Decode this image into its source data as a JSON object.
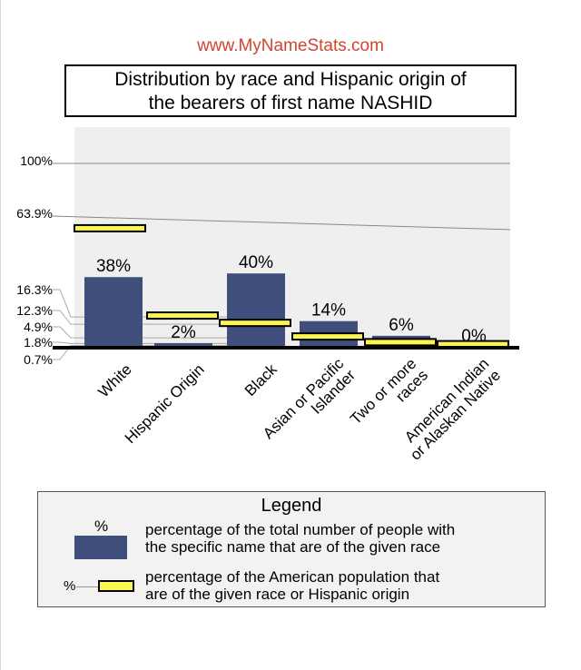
{
  "site": "www.MyNameStats.com",
  "title_lines": [
    "Distribution by race and Hispanic origin of",
    "the bearers of first name NASHID"
  ],
  "colors": {
    "bar": "#3f4e7a",
    "marker": "#fbf64f",
    "site": "#d2452c",
    "plot_bg": "#efefef"
  },
  "chart_data": {
    "type": "bar",
    "categories": [
      "White",
      "Hispanic Origin",
      "Black",
      "Asian or Pacific Islander",
      "Two or more races",
      "American Indian or Alaskan Native"
    ],
    "category_labels": [
      [
        "White"
      ],
      [
        "Hispanic Origin"
      ],
      [
        "Black"
      ],
      [
        "Asian or Pacific",
        "Islander"
      ],
      [
        "Two or more",
        "races"
      ],
      [
        "American Indian",
        "or Alaskan Native"
      ]
    ],
    "series": [
      {
        "values": [
          38,
          2,
          40,
          14,
          6,
          0
        ],
        "labels": [
          "38%",
          "2%",
          "40%",
          "14%",
          "6%",
          "0%"
        ]
      },
      {
        "values": [
          63.9,
          16.3,
          12.3,
          4.9,
          1.8,
          0.7
        ]
      }
    ],
    "ytick_labels": [
      "100%",
      "63.9%",
      "16.3%",
      "12.3%",
      "4.9%",
      "1.8%",
      "0.7%"
    ],
    "ylim": [
      0,
      100
    ],
    "legend": {
      "title": "Legend",
      "bar_symbol": "%",
      "bar_text": [
        "percentage of the total number of people with",
        "the specific name that are of the given race"
      ],
      "marker_symbol": "%",
      "marker_text": [
        "percentage of the American population that",
        "are of the given race or Hispanic origin"
      ]
    }
  }
}
